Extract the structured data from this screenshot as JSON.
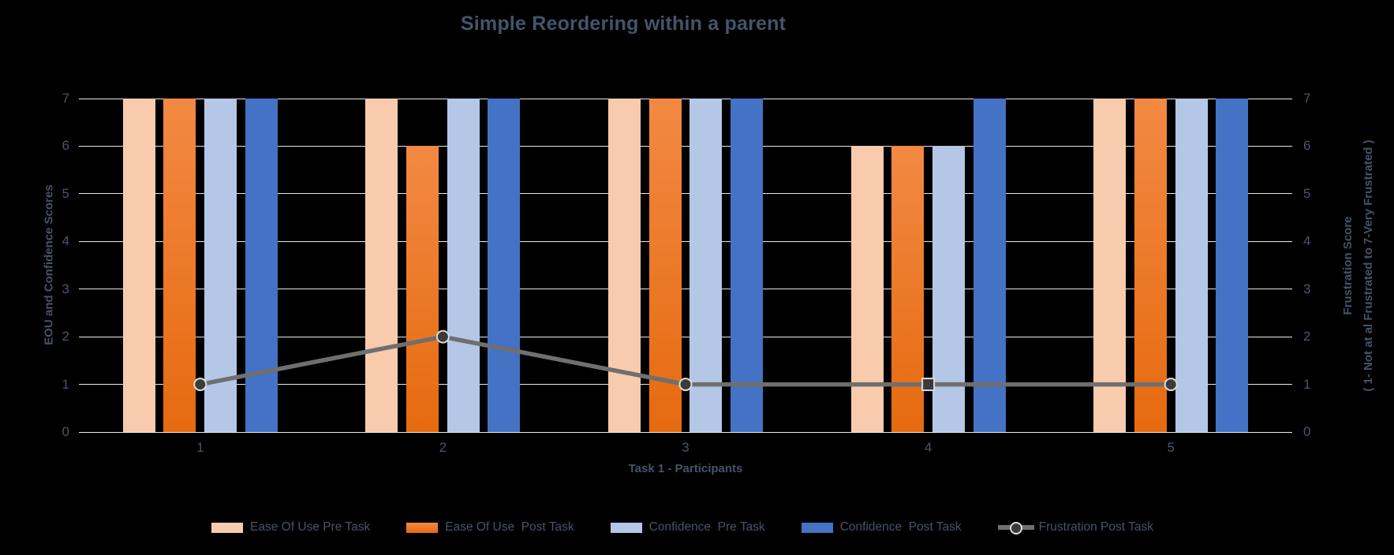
{
  "title": "Simple Reordering within a parent",
  "colors": {
    "background": "#000000",
    "text": "#44546A",
    "gridline": "#E7E9F1",
    "bar_ease_pre": "#F8CBAD",
    "bar_ease_post_top": "#F28943",
    "bar_ease_post_bottom": "#E66A0F",
    "bar_conf_pre": "#B4C7E7",
    "bar_conf_post": "#4472C4",
    "line": "#6F6F6F",
    "marker_fill": "#3B3B3B",
    "marker_ring": "#DCDCDC"
  },
  "axes": {
    "left_title": "EOU and Confidence Scores",
    "right_title_line1": "Frustration Score",
    "right_title_line2": "( 1- Not at al Frustrated to 7-Very Frustrated )",
    "x_title": "Task 1 - Participants"
  },
  "chart_data": {
    "type": "bar",
    "subtype": "grouped-bars-with-line-overlay",
    "title": "Simple Reordering within a parent",
    "categories": [
      "1",
      "2",
      "3",
      "4",
      "5"
    ],
    "series": [
      {
        "name": "Ease Of Use Pre Task",
        "type": "bar",
        "color": "#F8CBAD",
        "values": [
          7,
          7,
          7,
          6,
          7
        ]
      },
      {
        "name": "Ease Of Use  Post Task",
        "type": "bar",
        "color": "#ED7D31",
        "values": [
          7,
          6,
          7,
          6,
          7
        ]
      },
      {
        "name": "Confidence  Pre Task",
        "type": "bar",
        "color": "#B4C7E7",
        "values": [
          7,
          7,
          7,
          6,
          7
        ]
      },
      {
        "name": "Confidence  Post Task",
        "type": "bar",
        "color": "#4472C4",
        "values": [
          7,
          7,
          7,
          7,
          7
        ]
      },
      {
        "name": "Frustration Post Task",
        "type": "line",
        "color": "#6F6F6F",
        "values": [
          1,
          2,
          1,
          1,
          1
        ],
        "markers": [
          "circle",
          "circle",
          "circle",
          "square",
          "circle"
        ]
      }
    ],
    "xlabel": "Task 1 - Participants",
    "ylabel_left": "EOU and Confidence Scores",
    "ylabel_right": "Frustration Score ( 1- Not at al Frustrated to 7-Very Frustrated )",
    "ylim": [
      0,
      7
    ],
    "yticks": [
      0,
      1,
      2,
      3,
      4,
      5,
      6,
      7
    ],
    "grid": true,
    "legend_position": "bottom"
  }
}
